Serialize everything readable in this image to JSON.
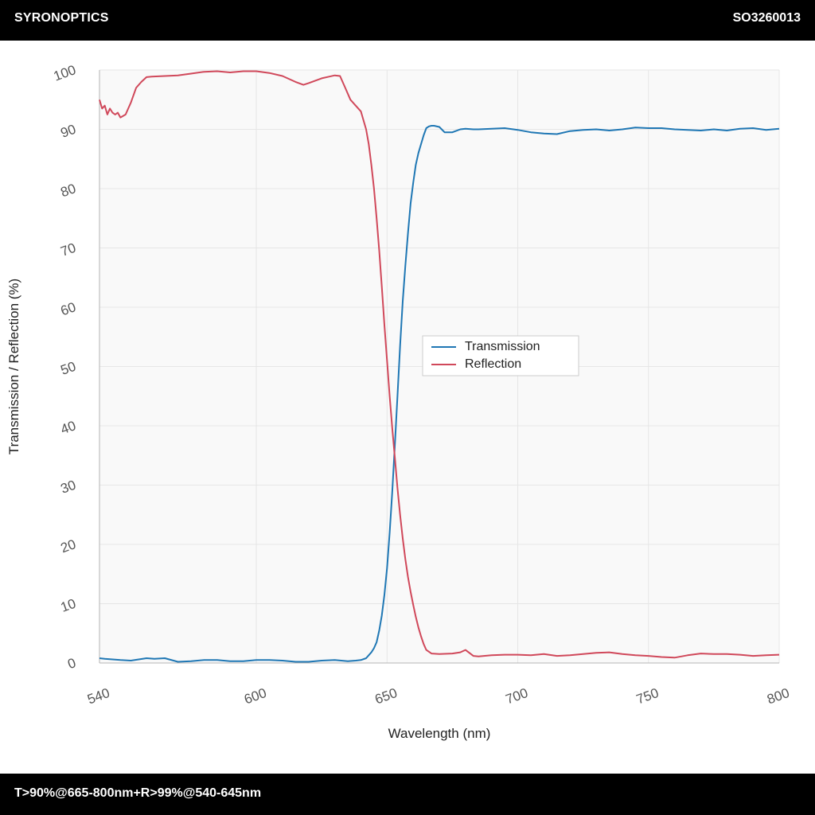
{
  "header": {
    "brand": "SYRONOPTICS",
    "part_number": "SO3260013"
  },
  "footer": {
    "spec": "T>90%@665-800nm+R>99%@540-645nm"
  },
  "colors": {
    "transmission": "#1f77b4",
    "reflection": "#d0485a",
    "plot_bg": "#f9f9f9",
    "grid": "#e6e6e6"
  },
  "chart_data": {
    "type": "line",
    "xlabel": "Wavelength (nm)",
    "ylabel": "Transmission / Reflection (%)",
    "xlim": [
      540,
      800
    ],
    "ylim": [
      0,
      100
    ],
    "xticks": [
      540,
      600,
      650,
      700,
      750,
      800
    ],
    "yticks": [
      0,
      10,
      20,
      30,
      40,
      50,
      60,
      70,
      80,
      90,
      100
    ],
    "grid": true,
    "legend_position": "center",
    "series": [
      {
        "name": "Transmission",
        "x": [
          540,
          542,
          545,
          548,
          552,
          555,
          558,
          561,
          565,
          570,
          575,
          580,
          585,
          590,
          595,
          600,
          605,
          610,
          615,
          620,
          625,
          630,
          635,
          638,
          640,
          642,
          644,
          645,
          646,
          647,
          648,
          649,
          650,
          651,
          652,
          653,
          654,
          655,
          656,
          657,
          658,
          659,
          660,
          661,
          662,
          663,
          664,
          665,
          666,
          667,
          668,
          670,
          672,
          675,
          678,
          680,
          683,
          685,
          690,
          695,
          700,
          705,
          710,
          715,
          720,
          725,
          730,
          735,
          740,
          745,
          750,
          755,
          760,
          765,
          770,
          775,
          780,
          785,
          790,
          795,
          800
        ],
        "values": [
          0.8,
          0.7,
          0.6,
          0.5,
          0.4,
          0.6,
          0.8,
          0.7,
          0.8,
          0.2,
          0.3,
          0.5,
          0.5,
          0.3,
          0.3,
          0.5,
          0.5,
          0.4,
          0.2,
          0.2,
          0.4,
          0.5,
          0.3,
          0.4,
          0.5,
          0.8,
          1.8,
          2.5,
          3.5,
          5.5,
          8.0,
          11.5,
          16.0,
          22.0,
          29.0,
          37.0,
          45.0,
          53.5,
          61.0,
          67.0,
          72.5,
          77.5,
          81.0,
          84.0,
          86.0,
          87.5,
          89.0,
          90.2,
          90.5,
          90.6,
          90.6,
          90.4,
          89.5,
          89.5,
          90.0,
          90.1,
          90.0,
          90.0,
          90.1,
          90.2,
          89.9,
          89.5,
          89.3,
          89.2,
          89.7,
          89.9,
          90.0,
          89.8,
          90.0,
          90.3,
          90.2,
          90.2,
          90.0,
          89.9,
          89.8,
          90.0,
          89.8,
          90.1,
          90.2,
          89.9,
          90.1
        ]
      },
      {
        "name": "Reflection",
        "x": [
          540,
          541,
          542,
          543,
          544,
          545,
          546,
          547,
          548,
          550,
          551,
          552,
          554,
          556,
          558,
          560,
          565,
          570,
          575,
          580,
          585,
          590,
          595,
          600,
          605,
          610,
          615,
          618,
          620,
          625,
          628,
          630,
          632,
          634,
          636,
          638,
          640,
          642,
          643,
          644,
          645,
          646,
          647,
          648,
          649,
          650,
          651,
          652,
          653,
          654,
          655,
          656,
          657,
          658,
          659,
          660,
          661,
          662,
          663,
          664,
          665,
          667,
          670,
          675,
          678,
          680,
          683,
          685,
          690,
          695,
          700,
          705,
          710,
          715,
          720,
          725,
          730,
          735,
          740,
          745,
          750,
          755,
          760,
          765,
          770,
          775,
          780,
          785,
          790,
          795,
          800
        ],
        "values": [
          95.0,
          93.5,
          94.0,
          92.5,
          93.5,
          92.8,
          92.5,
          92.8,
          92.0,
          92.5,
          93.5,
          94.5,
          97.0,
          98.0,
          98.8,
          98.9,
          99.0,
          99.1,
          99.4,
          99.7,
          99.8,
          99.6,
          99.8,
          99.8,
          99.5,
          99.0,
          98.0,
          97.5,
          97.8,
          98.6,
          98.9,
          99.1,
          99.0,
          97.0,
          95.0,
          94.0,
          93.0,
          90.0,
          87.5,
          84.0,
          80.0,
          75.0,
          69.5,
          63.5,
          57.0,
          51.0,
          45.0,
          39.5,
          34.5,
          29.5,
          25.0,
          21.0,
          17.5,
          14.5,
          12.0,
          9.8,
          7.8,
          6.0,
          4.5,
          3.2,
          2.2,
          1.6,
          1.5,
          1.6,
          1.8,
          2.2,
          1.2,
          1.1,
          1.3,
          1.4,
          1.4,
          1.3,
          1.5,
          1.2,
          1.3,
          1.5,
          1.7,
          1.8,
          1.5,
          1.3,
          1.2,
          1.0,
          0.9,
          1.3,
          1.6,
          1.5,
          1.5,
          1.4,
          1.2,
          1.3,
          1.4
        ]
      }
    ]
  }
}
